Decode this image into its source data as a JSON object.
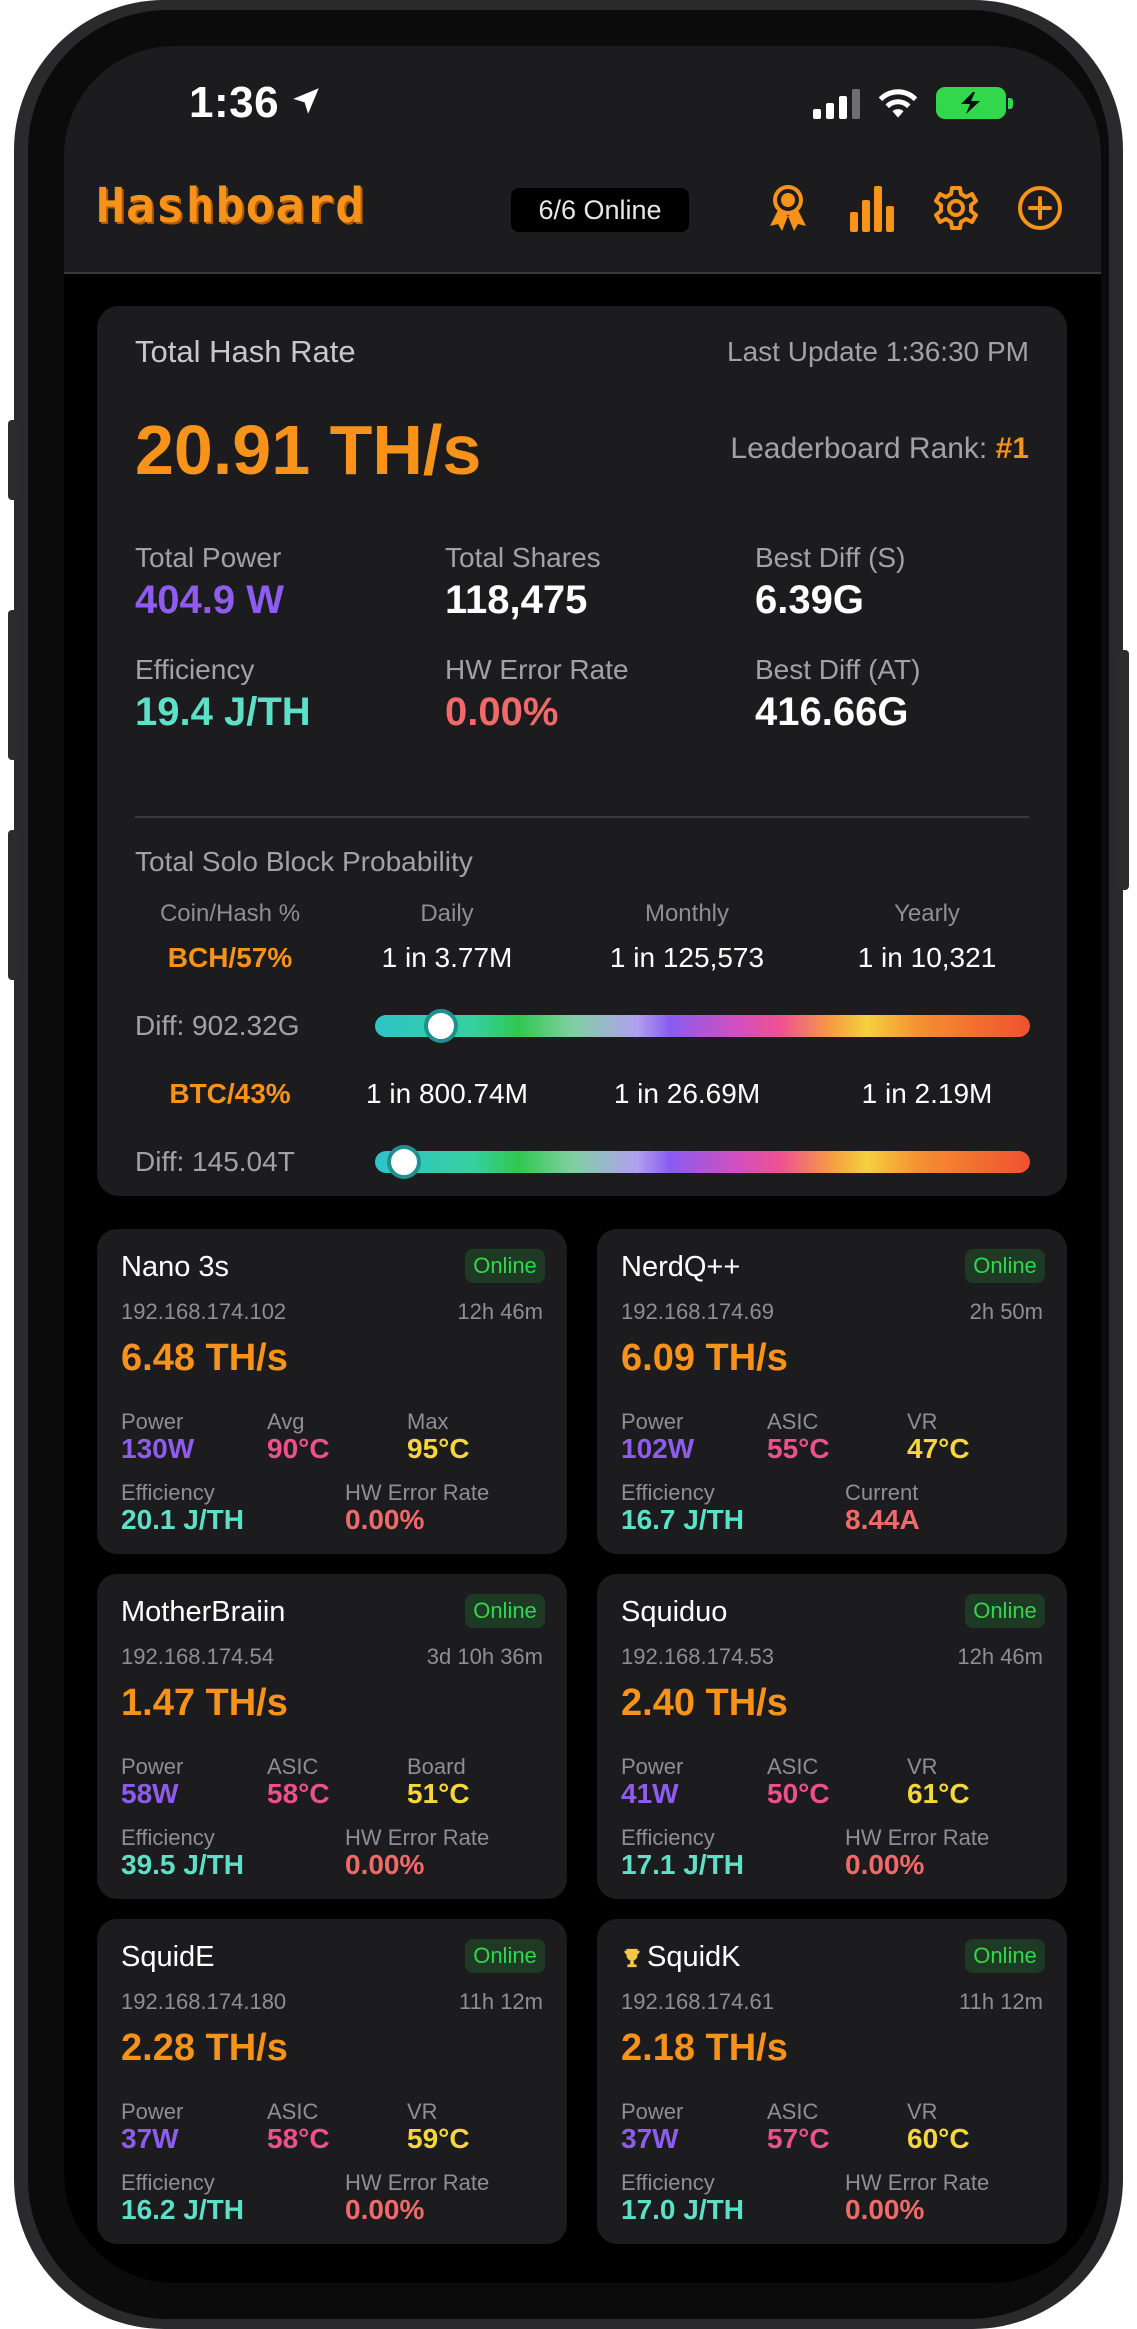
{
  "status_bar": {
    "time": "1:36"
  },
  "header": {
    "logo": "Hashboard",
    "online_count": "6/6 Online",
    "icons": [
      "award-icon",
      "bar-chart-icon",
      "gear-icon",
      "add-circle-icon"
    ]
  },
  "colors": {
    "accent": "#f7931a",
    "power": "#8f5cf0",
    "temp": "#f0508a",
    "vr": "#f5d73c",
    "efficiency": "#5ee0c8",
    "error": "#f06a6a",
    "online": "#32d74b"
  },
  "summary": {
    "title": "Total Hash Rate",
    "last_update": "Last Update 1:36:30 PM",
    "hash_rate": "20.91 TH/s",
    "rank_label": "Leaderboard Rank:",
    "rank_value": "#1",
    "stats": [
      {
        "label": "Total Power",
        "value": "404.9 W"
      },
      {
        "label": "Total Shares",
        "value": "118,475"
      },
      {
        "label": "Best Diff (S)",
        "value": "6.39G"
      },
      {
        "label": "Efficiency",
        "value": "19.4 J/TH"
      },
      {
        "label": "HW Error Rate",
        "value": "0.00%"
      },
      {
        "label": "Best Diff (AT)",
        "value": "416.66G"
      }
    ],
    "probability": {
      "title": "Total Solo Block Probability",
      "columns": [
        "Coin/Hash %",
        "Daily",
        "Monthly",
        "Yearly"
      ],
      "rows": [
        {
          "coin": "BCH/57%",
          "daily": "1 in 3.77M",
          "monthly": "1 in 125,573",
          "yearly": "1 in 10,321",
          "diff": "Diff: 902.32G",
          "level": 0.1
        },
        {
          "coin": "BTC/43%",
          "daily": "1 in 800.74M",
          "monthly": "1 in 26.69M",
          "yearly": "1 in 2.19M",
          "diff": "Diff: 145.04T",
          "level": 0.045
        }
      ]
    }
  },
  "miners": [
    {
      "name": "Nano 3s",
      "trophy": "",
      "status": "Online",
      "ip": "192.168.174.102",
      "uptime": "12h 46m",
      "hash": "6.48 TH/s",
      "stats": [
        {
          "label": "Power",
          "value": "130W"
        },
        {
          "label": "Avg",
          "value": "90°C"
        },
        {
          "label": "Max",
          "value": "95°C"
        }
      ],
      "eff_label": "Efficiency",
      "eff": "20.1 J/TH",
      "extra_label": "HW Error Rate",
      "extra": "0.00%"
    },
    {
      "name": "NerdQ++",
      "trophy": "",
      "status": "Online",
      "ip": "192.168.174.69",
      "uptime": "2h 50m",
      "hash": "6.09 TH/s",
      "stats": [
        {
          "label": "Power",
          "value": "102W"
        },
        {
          "label": "ASIC",
          "value": "55°C"
        },
        {
          "label": "VR",
          "value": "47°C"
        }
      ],
      "eff_label": "Efficiency",
      "eff": "16.7 J/TH",
      "extra_label": "Current",
      "extra": "8.44A"
    },
    {
      "name": "MotherBraiin",
      "trophy": "",
      "status": "Online",
      "ip": "192.168.174.54",
      "uptime": "3d 10h 36m",
      "hash": "1.47 TH/s",
      "stats": [
        {
          "label": "Power",
          "value": "58W"
        },
        {
          "label": "ASIC",
          "value": "58°C"
        },
        {
          "label": "Board",
          "value": "51°C"
        }
      ],
      "eff_label": "Efficiency",
      "eff": "39.5 J/TH",
      "extra_label": "HW Error Rate",
      "extra": "0.00%"
    },
    {
      "name": "Squiduo",
      "trophy": "",
      "status": "Online",
      "ip": "192.168.174.53",
      "uptime": "12h 46m",
      "hash": "2.40 TH/s",
      "stats": [
        {
          "label": "Power",
          "value": "41W"
        },
        {
          "label": "ASIC",
          "value": "50°C"
        },
        {
          "label": "VR",
          "value": "61°C"
        }
      ],
      "eff_label": "Efficiency",
      "eff": "17.1 J/TH",
      "extra_label": "HW Error Rate",
      "extra": "0.00%"
    },
    {
      "name": "SquidE",
      "trophy": "",
      "status": "Online",
      "ip": "192.168.174.180",
      "uptime": "11h 12m",
      "hash": "2.28 TH/s",
      "stats": [
        {
          "label": "Power",
          "value": "37W"
        },
        {
          "label": "ASIC",
          "value": "58°C"
        },
        {
          "label": "VR",
          "value": "59°C"
        }
      ],
      "eff_label": "Efficiency",
      "eff": "16.2 J/TH",
      "extra_label": "HW Error Rate",
      "extra": "0.00%"
    },
    {
      "name": "SquidK",
      "trophy": "trophy-icon",
      "status": "Online",
      "ip": "192.168.174.61",
      "uptime": "11h 12m",
      "hash": "2.18 TH/s",
      "stats": [
        {
          "label": "Power",
          "value": "37W"
        },
        {
          "label": "ASIC",
          "value": "57°C"
        },
        {
          "label": "VR",
          "value": "60°C"
        }
      ],
      "eff_label": "Efficiency",
      "eff": "17.0 J/TH",
      "extra_label": "HW Error Rate",
      "extra": "0.00%"
    }
  ]
}
